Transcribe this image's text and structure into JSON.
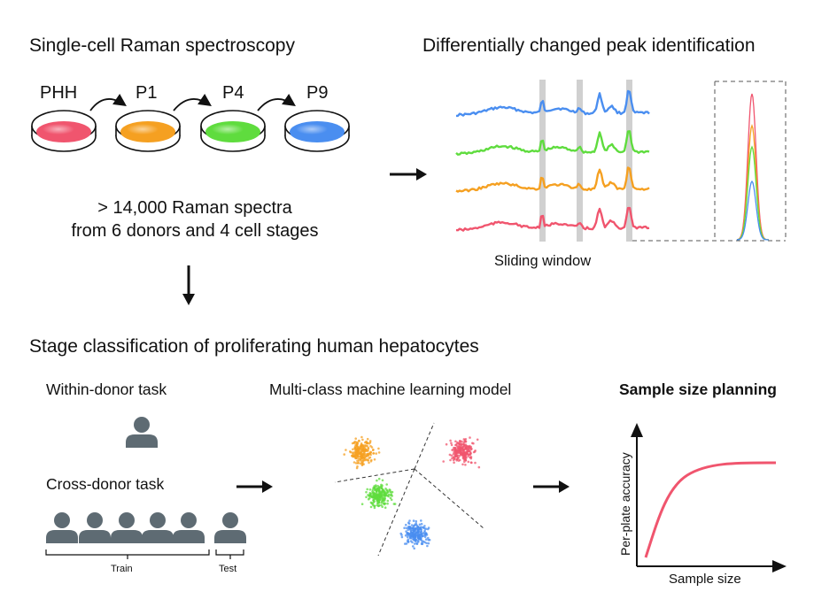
{
  "titles": {
    "raman": "Single-cell Raman spectroscopy",
    "peak": "Differentially changed peak identification",
    "stage_classification": "Stage classification of proliferating human hepatocytes"
  },
  "stages": [
    {
      "label": "PHH",
      "color": "#f0556e"
    },
    {
      "label": "P1",
      "color": "#f5a021"
    },
    {
      "label": "P4",
      "color": "#5fdc3e"
    },
    {
      "label": "P9",
      "color": "#4a8ef0"
    }
  ],
  "spectra_summary": {
    "line1": "> 14,000 Raman spectra",
    "line2": "from 6 donors and 4 cell stages"
  },
  "sliding_window": "Sliding window",
  "tasks": {
    "within_donor": "Within-donor task",
    "cross_donor": "Cross-donor task",
    "train": "Train",
    "test": "Test"
  },
  "model_title": "Multi-class machine learning model",
  "sample_size": {
    "title": "Sample size planning",
    "xlabel": "Sample size",
    "ylabel": "Per-plate accuracy"
  },
  "colors": {
    "person": "#5e6b73",
    "highlight": "#cccccc",
    "curve": "#f0556e"
  }
}
